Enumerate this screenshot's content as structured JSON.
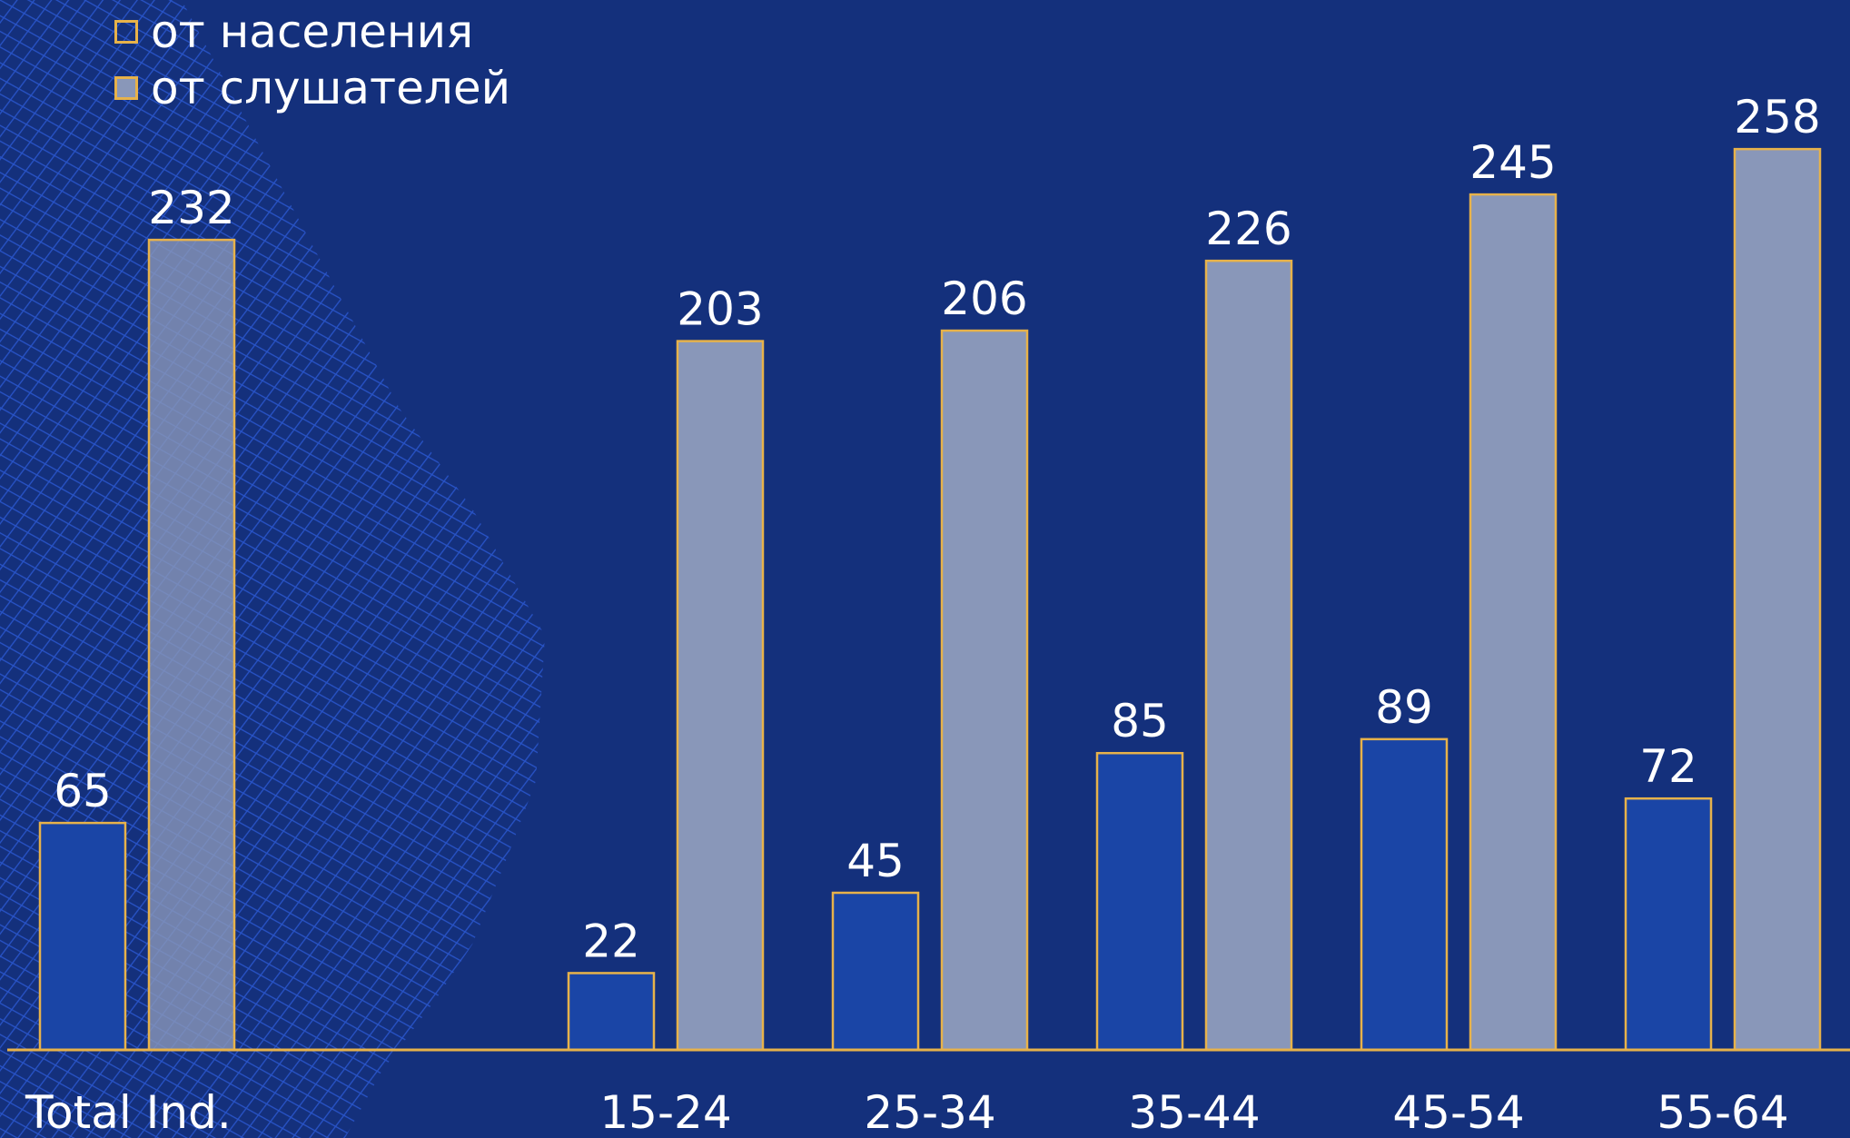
{
  "colors": {
    "background": "#14307c",
    "series_population": "#1a45a6",
    "series_listeners": "#8997b9",
    "bar_outline": "#e7b24a",
    "text": "#ffffff",
    "baseline": "#e7b24a"
  },
  "chart_data": {
    "type": "bar",
    "categories": [
      "Total Ind.",
      "15-24",
      "25-34",
      "35-44",
      "45-54",
      "55-64"
    ],
    "series": [
      {
        "name": "от населения",
        "values": [
          65,
          22,
          45,
          85,
          89,
          72
        ]
      },
      {
        "name": "от слушателей",
        "values": [
          232,
          203,
          206,
          226,
          245,
          258
        ]
      }
    ],
    "title": "",
    "xlabel": "",
    "ylabel": "",
    "ylim": [
      0,
      270
    ],
    "grid": false,
    "legend_position": "top-left",
    "data_labels": true
  }
}
